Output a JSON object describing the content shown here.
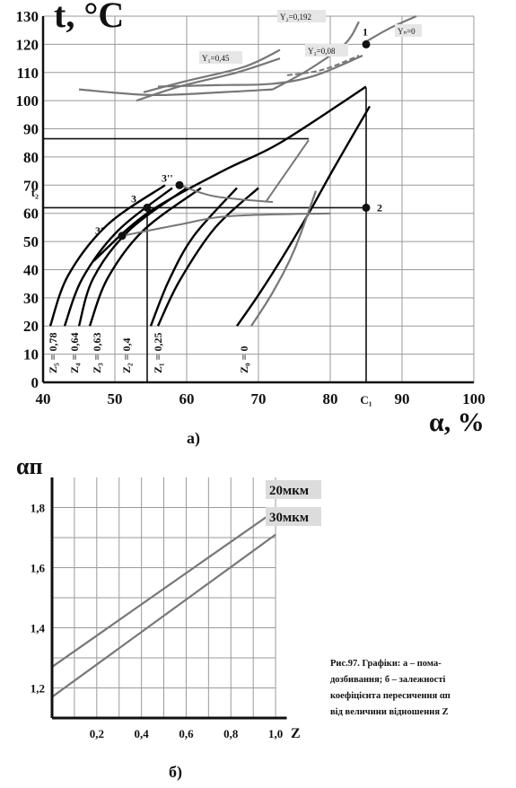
{
  "chart_data": [
    {
      "type": "line",
      "panel_label": "а)",
      "xlabel": "α, %",
      "ylabel": "t, °C",
      "xlim": [
        40,
        100
      ],
      "ylim": [
        0,
        130
      ],
      "x_ticks": [
        "40",
        "50",
        "60",
        "70",
        "80",
        "90",
        "100"
      ],
      "x_extra_tick": "C₁",
      "y_ticks": [
        "0",
        "10",
        "20",
        "30",
        "40",
        "50",
        "60",
        "70",
        "80",
        "90",
        "100",
        "110",
        "120",
        "130"
      ],
      "y_extra_tick": "t₂",
      "grid": true,
      "series_Z": [
        {
          "name": "Z₀ = 0",
          "color": "#000000",
          "points": [
            [
              67,
              20
            ],
            [
              70,
              31
            ],
            [
              73.5,
              45
            ],
            [
              77,
              60
            ],
            [
              80.5,
              76
            ],
            [
              85.5,
              98
            ]
          ]
        },
        {
          "name": "",
          "color": "#777777",
          "points": [
            [
              69,
              20
            ],
            [
              72,
              32
            ],
            [
              75,
              47
            ],
            [
              78,
              68
            ]
          ]
        },
        {
          "name": "Z₁ = 0,25",
          "color": "#000000",
          "points": [
            [
              56,
              20
            ],
            [
              59,
              36
            ],
            [
              64,
              55
            ],
            [
              70,
              69
            ]
          ]
        },
        {
          "name": "",
          "color": "#000000",
          "points": [
            [
              55,
              20
            ],
            [
              57.5,
              36
            ],
            [
              61,
              52
            ],
            [
              67,
              69
            ]
          ]
        },
        {
          "name": "Z₂ = 0,4",
          "color": "#000000",
          "points": [
            [
              46.5,
              20
            ],
            [
              49,
              37
            ],
            [
              54,
              54
            ],
            [
              62,
              69
            ]
          ]
        },
        {
          "name": "Z₃ = 0,63",
          "color": "#000000",
          "points": [
            [
              45,
              20
            ],
            [
              47,
              37
            ],
            [
              52,
              54
            ],
            [
              60,
              69
            ]
          ]
        },
        {
          "name": "Z₄ = 0,64",
          "color": "#000000",
          "points": [
            [
              43,
              20
            ],
            [
              45.5,
              37
            ],
            [
              50.5,
              54
            ],
            [
              58,
              69
            ]
          ]
        },
        {
          "name": "Z₅ = 0,78",
          "color": "#000000",
          "points": [
            [
              41,
              20
            ],
            [
              43.5,
              38
            ],
            [
              49,
              56
            ],
            [
              57,
              70
            ]
          ]
        },
        {
          "name": "",
          "color": "#000000",
          "points": [
            [
              47,
              43
            ],
            [
              54.5,
              60
            ],
            [
              65,
              75
            ],
            [
              73,
              85
            ],
            [
              85,
              105
            ]
          ]
        }
      ],
      "series_Y": [
        {
          "name": "Yₙ=0",
          "color": "#777777",
          "points": [
            [
              85,
              121
            ],
            [
              88.5,
              126
            ],
            [
              92,
              130
            ]
          ]
        },
        {
          "name": "Y₂=0,192",
          "color": "#777777",
          "points": [
            [
              72,
              104
            ],
            [
              77,
              111
            ],
            [
              82,
              120
            ],
            [
              84,
              128
            ]
          ]
        },
        {
          "name": "Y₁=0,45",
          "color": "#777777",
          "points": [
            [
              54,
              103
            ],
            [
              60,
              107
            ],
            [
              68,
              112
            ],
            [
              73,
              118
            ]
          ]
        },
        {
          "name": "",
          "color": "#777777",
          "points": [
            [
              53,
              100
            ],
            [
              59,
              105
            ],
            [
              67,
              110
            ],
            [
              73,
              115
            ]
          ]
        },
        {
          "name": "Y₃=0,08",
          "color": "#777777",
          "points": [
            [
              56,
              105
            ],
            [
              64,
              105.5
            ],
            [
              72,
              106
            ],
            [
              78,
              109
            ],
            [
              84.5,
              116
            ]
          ]
        },
        {
          "name": "",
          "color": "#777777",
          "points": [
            [
              45,
              104
            ],
            [
              55,
              102
            ],
            [
              65,
              103
            ],
            [
              72,
              104
            ]
          ]
        }
      ],
      "points": [
        {
          "label": "1",
          "x": 85,
          "y": 120
        },
        {
          "label": "2",
          "x": 85,
          "y": 62
        },
        {
          "label": "3",
          "x": 54.5,
          "y": 62
        },
        {
          "label": "3'",
          "x": 51,
          "y": 52
        },
        {
          "label": "3''",
          "x": 59,
          "y": 70
        }
      ]
    },
    {
      "type": "line",
      "panel_label": "б)",
      "xlabel": "Z",
      "ylabel": "αп",
      "xlim": [
        0,
        1.1
      ],
      "ylim": [
        1.1,
        1.9
      ],
      "x_ticks": [
        "0,2",
        "0,4",
        "0,6",
        "0,8",
        "1,0"
      ],
      "y_ticks": [
        "1,2",
        "1,4",
        "1,6",
        "1,8"
      ],
      "grid": true,
      "series": [
        {
          "name": "20мкм",
          "x": [
            0,
            1.0
          ],
          "y": [
            1.27,
            1.79
          ]
        },
        {
          "name": "30мкм",
          "x": [
            0,
            1.0
          ],
          "y": [
            1.17,
            1.71
          ]
        }
      ]
    }
  ],
  "caption": [
    "Рис.97. Графіки: а – пома-",
    "дозбивання; б – залежності",
    "коефіцієнта пересичення αп",
    "від величини відношення Z"
  ]
}
